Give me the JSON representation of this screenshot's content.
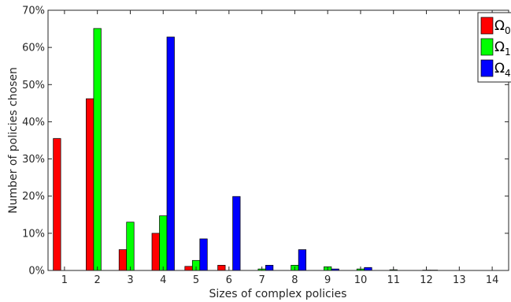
{
  "chart_data": {
    "type": "bar",
    "xlabel": "Sizes of complex policies",
    "ylabel": "Number of policies chosen",
    "categories": [
      "1",
      "2",
      "3",
      "4",
      "5",
      "6",
      "7",
      "8",
      "9",
      "10",
      "11",
      "12",
      "13",
      "14"
    ],
    "ylim": [
      0,
      70
    ],
    "yticks": [
      0,
      10,
      20,
      30,
      40,
      50,
      60,
      70
    ],
    "ytick_labels": [
      "0%",
      "10%",
      "20%",
      "30%",
      "40%",
      "50%",
      "60%",
      "70%"
    ],
    "grid": false,
    "legend_position": "top-right",
    "series": [
      {
        "name": "Ω",
        "name_sub": "0",
        "color": "#ff0000",
        "values": [
          35.5,
          46.2,
          5.6,
          10.0,
          1.1,
          1.4,
          0,
          0,
          0,
          0,
          0,
          0,
          0,
          0
        ]
      },
      {
        "name": "Ω",
        "name_sub": "1",
        "color": "#00ff00",
        "values": [
          0,
          65.1,
          13.0,
          14.7,
          2.7,
          0,
          0.4,
          1.4,
          1.0,
          0.4,
          0.2,
          0.1,
          0,
          0
        ]
      },
      {
        "name": "Ω",
        "name_sub": "4",
        "color": "#0000ff",
        "values": [
          0,
          0,
          0,
          62.8,
          8.5,
          19.9,
          1.4,
          5.6,
          0.4,
          0.8,
          0,
          0.1,
          0,
          0
        ]
      }
    ]
  }
}
